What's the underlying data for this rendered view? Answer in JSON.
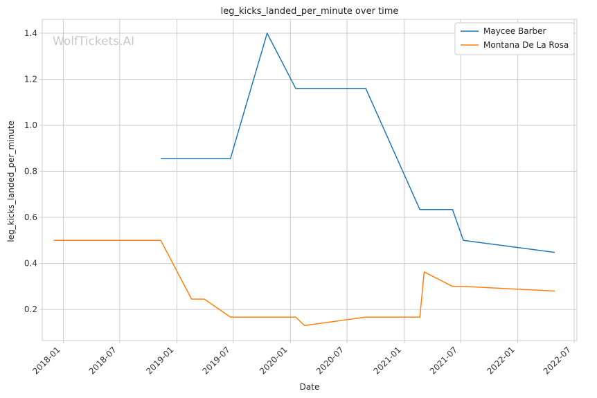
{
  "chart_data": {
    "type": "line",
    "title": "leg_kicks_landed_per_minute over time",
    "xlabel": "Date",
    "ylabel": "leg_kicks_landed_per_minute",
    "watermark": "WolfTickets.AI",
    "xlim": [
      "2017-10-25",
      "2022-07-10"
    ],
    "ylim": [
      0.065,
      1.46
    ],
    "x_ticks": [
      "2018-01",
      "2018-07",
      "2019-01",
      "2019-07",
      "2020-01",
      "2020-07",
      "2021-01",
      "2021-07",
      "2022-01",
      "2022-07"
    ],
    "y_ticks": [
      0.2,
      0.4,
      0.6,
      0.8,
      1.0,
      1.2,
      1.4
    ],
    "y_tick_labels": [
      "0.2",
      "0.4",
      "0.6",
      "0.8",
      "1.0",
      "1.2",
      "1.4"
    ],
    "grid": true,
    "legend_position": "top-right",
    "series": [
      {
        "name": "Maycee Barber",
        "color": "#1f77b4",
        "points": [
          {
            "x": "2018-11-10",
            "y": 0.855
          },
          {
            "x": "2019-06-22",
            "y": 0.855
          },
          {
            "x": "2019-10-18",
            "y": 1.4
          },
          {
            "x": "2020-01-18",
            "y": 1.16
          },
          {
            "x": "2020-08-30",
            "y": 1.16
          },
          {
            "x": "2021-02-20",
            "y": 0.634
          },
          {
            "x": "2021-06-05",
            "y": 0.634
          },
          {
            "x": "2021-07-10",
            "y": 0.5
          },
          {
            "x": "2022-04-30",
            "y": 0.448
          }
        ]
      },
      {
        "name": "Montana De La Rosa",
        "color": "#ff7f0e",
        "points": [
          {
            "x": "2017-12-01",
            "y": 0.5
          },
          {
            "x": "2018-11-10",
            "y": 0.5
          },
          {
            "x": "2019-02-17",
            "y": 0.245
          },
          {
            "x": "2019-03-30",
            "y": 0.245
          },
          {
            "x": "2019-06-22",
            "y": 0.167
          },
          {
            "x": "2020-01-18",
            "y": 0.167
          },
          {
            "x": "2020-02-15",
            "y": 0.13
          },
          {
            "x": "2020-08-30",
            "y": 0.167
          },
          {
            "x": "2021-02-20",
            "y": 0.167
          },
          {
            "x": "2021-03-06",
            "y": 0.363
          },
          {
            "x": "2021-06-05",
            "y": 0.3
          },
          {
            "x": "2021-07-10",
            "y": 0.3
          },
          {
            "x": "2022-04-30",
            "y": 0.28
          }
        ]
      }
    ]
  }
}
